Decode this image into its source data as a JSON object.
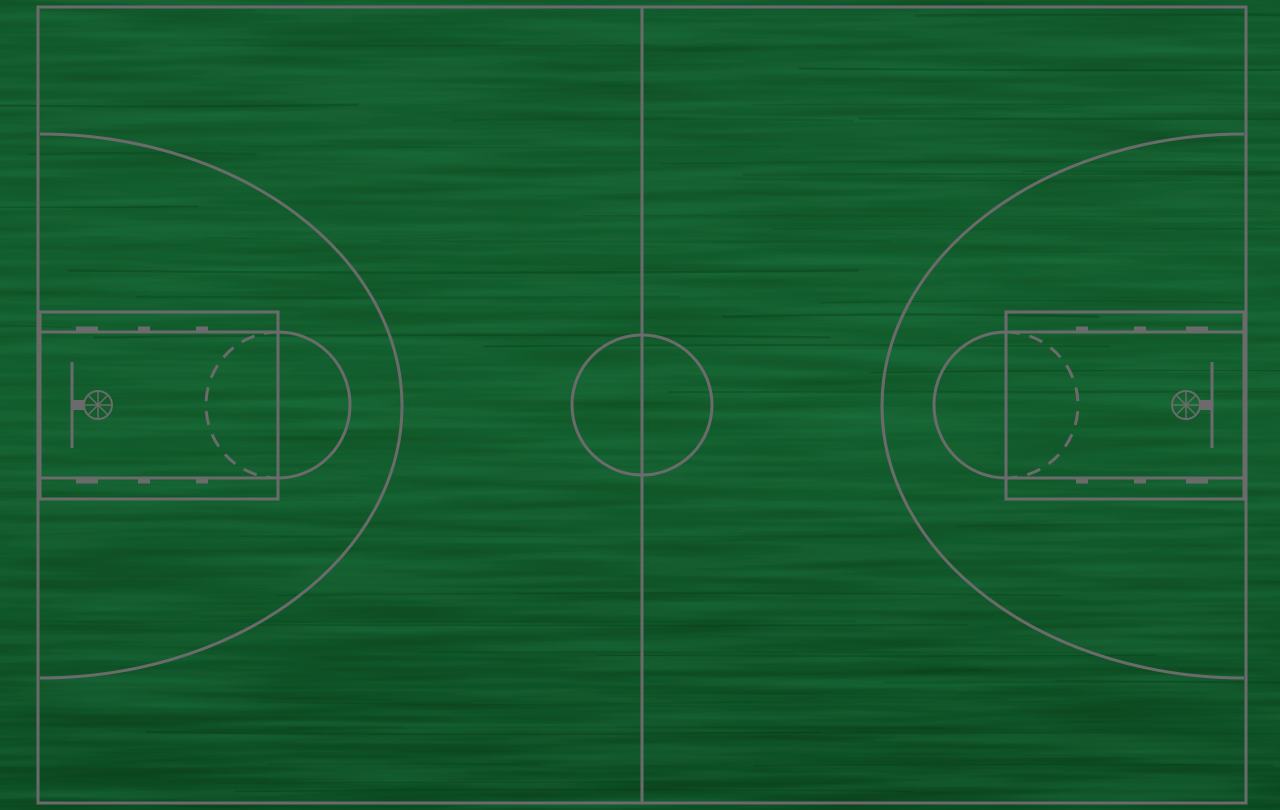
{
  "court": {
    "type": "basketball-court-full",
    "floor_colors": {
      "base": "#0d4a1f",
      "dark": "#073a15",
      "light": "#165f2b"
    },
    "line_color": "#6b6b6b"
  }
}
